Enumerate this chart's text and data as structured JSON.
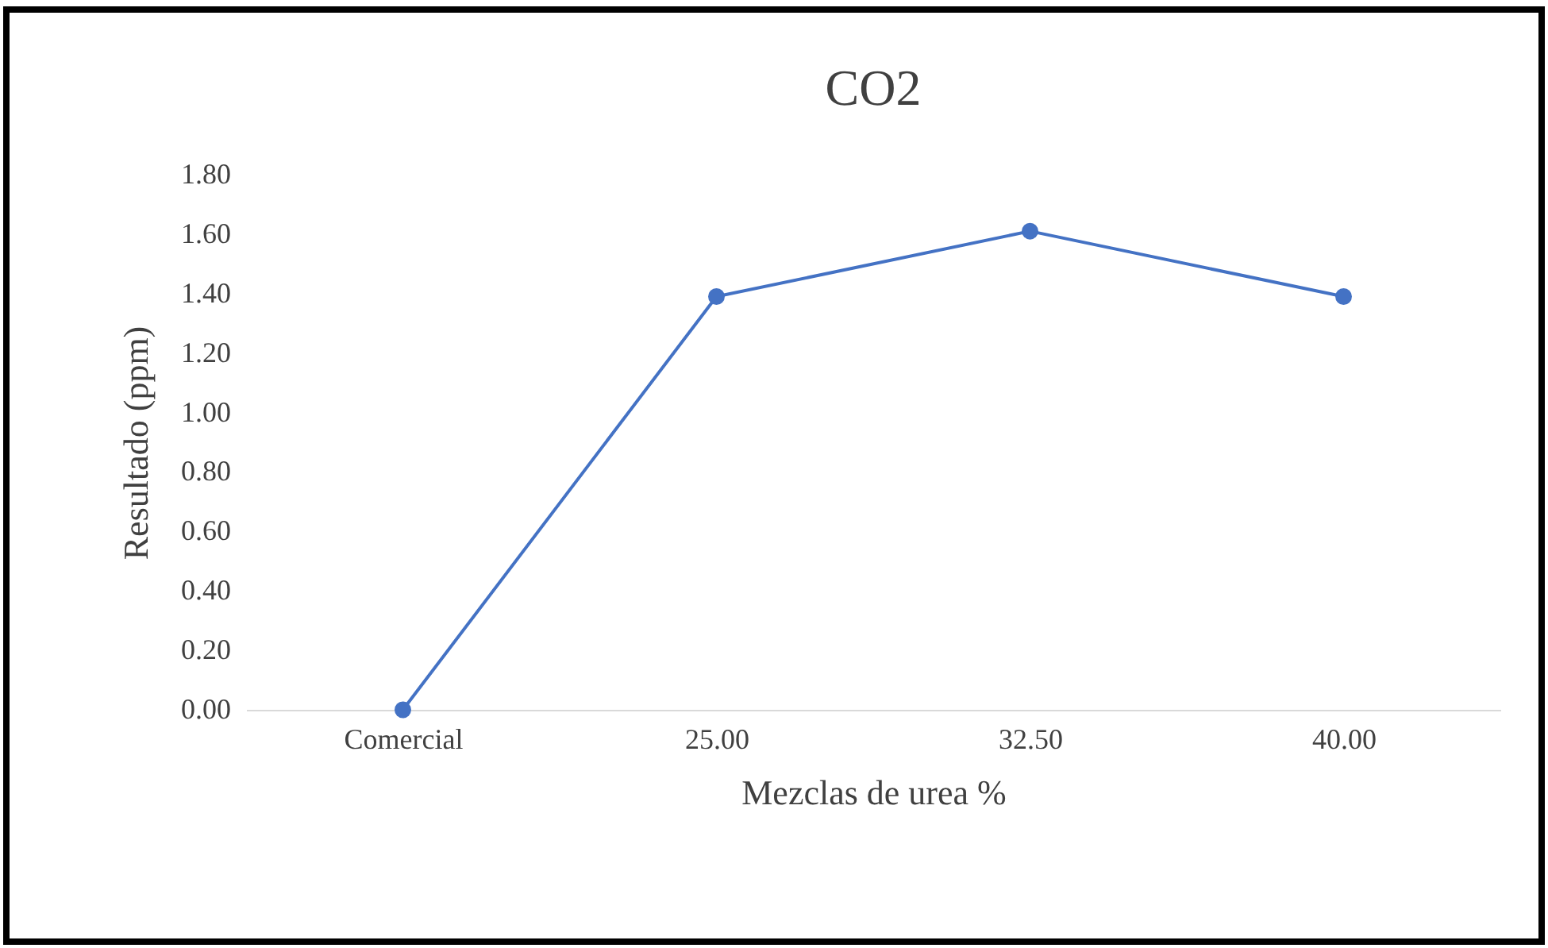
{
  "chart_data": {
    "type": "line",
    "title": "CO2",
    "xlabel": "Mezclas de urea %",
    "ylabel": "Resultado  (ppm)",
    "categories": [
      "Comercial",
      "25.00",
      "32.50",
      "40.00"
    ],
    "series": [
      {
        "color": "#4472c4",
        "values": [
          0,
          1.39,
          1.61,
          1.39
        ]
      }
    ],
    "ylim": [
      0,
      1.8
    ],
    "yticks": [
      {
        "value": 0,
        "label": "0.00"
      },
      {
        "value": 0.2,
        "label": "0.20"
      },
      {
        "value": 0.4,
        "label": "0.40"
      },
      {
        "value": 0.6,
        "label": "0.60"
      },
      {
        "value": 0.8,
        "label": "0.80"
      },
      {
        "value": 1,
        "label": "1.00"
      },
      {
        "value": 1.2,
        "label": "1.20"
      },
      {
        "value": 1.4,
        "label": "1.40"
      },
      {
        "value": 1.6,
        "label": "1.60"
      },
      {
        "value": 1.8,
        "label": "1.80"
      }
    ],
    "grid": false,
    "legend": false,
    "marker": "circle",
    "line_style": "solid"
  }
}
